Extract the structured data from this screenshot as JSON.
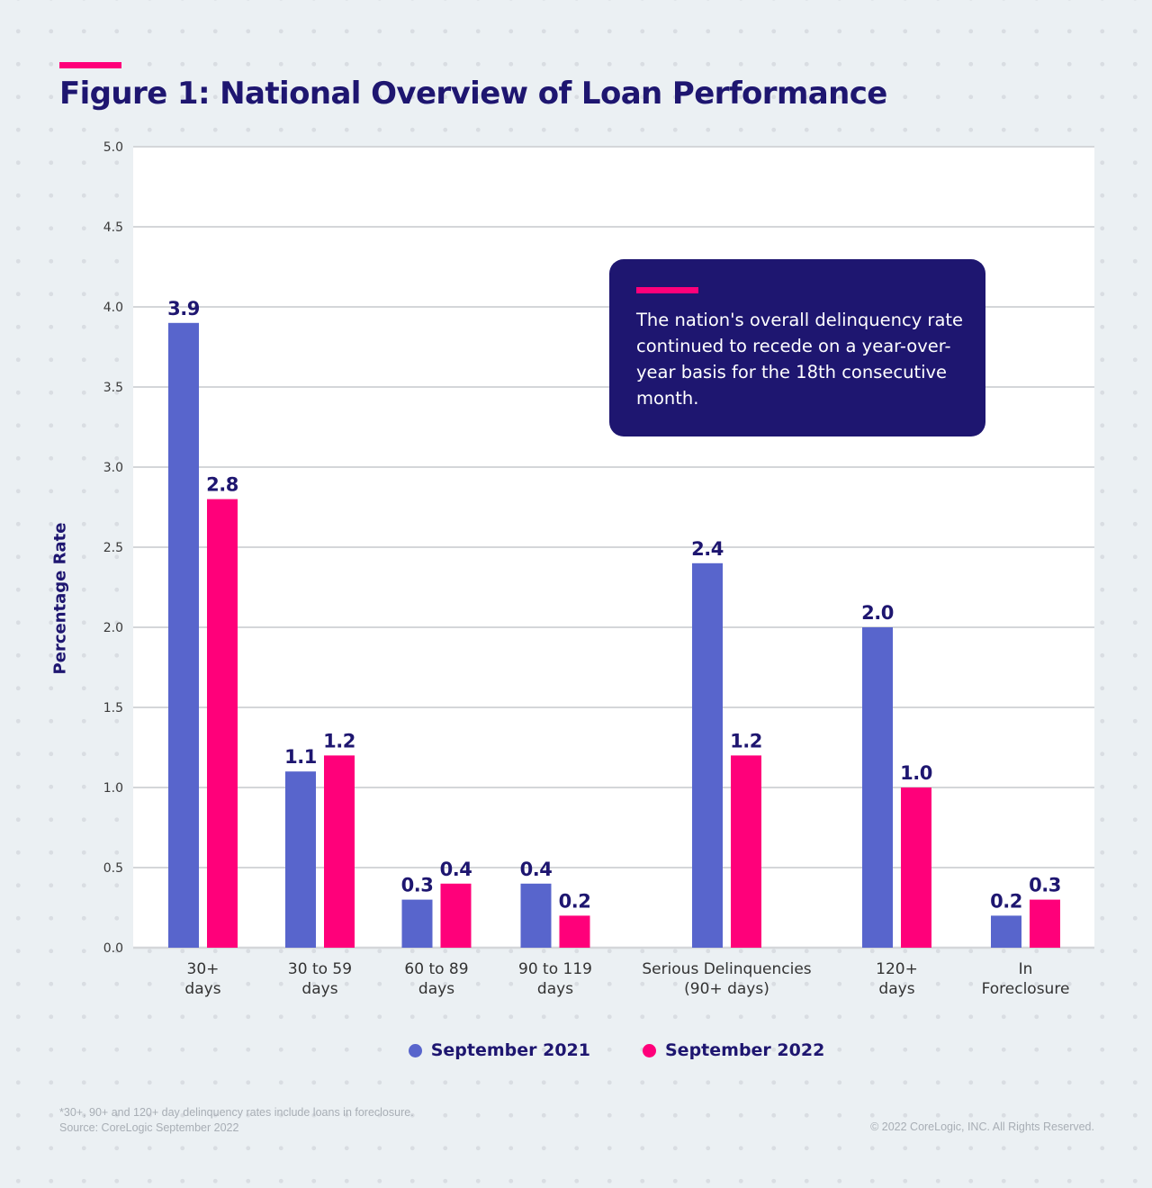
{
  "chart_data": {
    "type": "bar",
    "title": "Figure 1: National Overview of Loan Performance",
    "xlabel": "",
    "ylabel": "Percentage Rate",
    "ylim": [
      0,
      5
    ],
    "yticks": [
      "0.0",
      "0.5",
      "1.0",
      "1.5",
      "2.0",
      "2.5",
      "3.0",
      "3.5",
      "4.0",
      "4.5",
      "5.0"
    ],
    "grid": true,
    "legend_position": "bottom",
    "categories": [
      [
        "30+",
        "days"
      ],
      [
        "30 to 59",
        "days"
      ],
      [
        "60 to 89",
        "days"
      ],
      [
        "90 to 119",
        "days"
      ],
      [
        "Serious Delinquencies",
        "(90+ days)"
      ],
      [
        "120+",
        "days"
      ],
      [
        "In",
        "Foreclosure"
      ]
    ],
    "series": [
      {
        "name": "September 2021",
        "color": "#5865cc",
        "values": [
          3.9,
          1.1,
          0.3,
          0.4,
          2.4,
          2.0,
          0.2
        ],
        "labels": [
          "3.9",
          "1.1",
          "0.3",
          "0.4",
          "2.4",
          "2.0",
          "0.2"
        ]
      },
      {
        "name": "September 2022",
        "color": "#ff007a",
        "values": [
          2.8,
          1.2,
          0.4,
          0.2,
          1.2,
          1.0,
          0.3
        ],
        "labels": [
          "2.8",
          "1.2",
          "0.4",
          "0.2",
          "1.2",
          "1.0",
          "0.3"
        ]
      }
    ],
    "annotation": "The nation's overall delinquency rate continued to recede on a year-over-year basis for the 18th consecutive month."
  },
  "footnote": {
    "line1": "*30+, 90+ and 120+ day delinquency rates include loans in foreclosure.",
    "line2": "Source: CoreLogic September 2022"
  },
  "copyright": "© 2022 CoreLogic, INC. All Rights Reserved.",
  "colors": {
    "accent": "#ff007a",
    "navy": "#1e1670",
    "series_2021": "#5865cc",
    "series_2022": "#ff007a",
    "background": "#ebf0f3"
  }
}
